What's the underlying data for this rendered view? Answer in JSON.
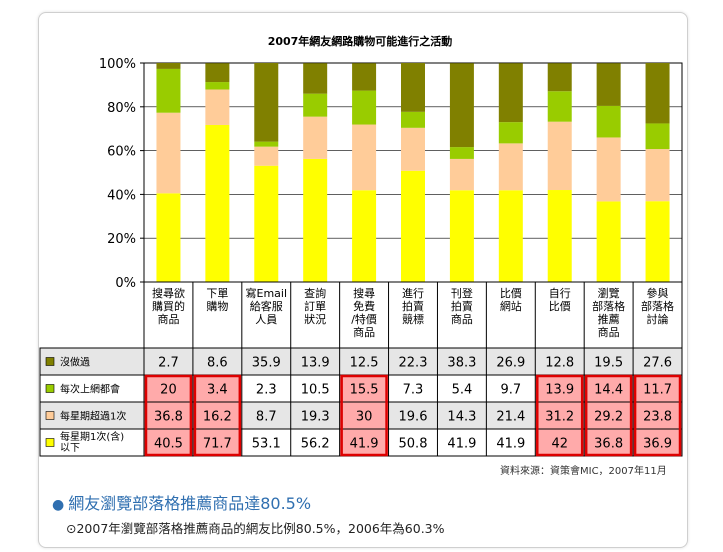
{
  "chart_data": {
    "type": "bar",
    "stacked": true,
    "title": "2007年網友網路購物可能進行之活動",
    "categories": [
      "搜尋欲購買的商品",
      "下單購物",
      "寫Email給客服人員",
      "查詢訂單狀況",
      "搜尋免費/特價商品",
      "進行拍賣競標",
      "刊登拍賣商品",
      "比價網站",
      "自行比價",
      "瀏覽部落格推薦商品",
      "參與部落格討論"
    ],
    "category_lines": [
      [
        "搜尋欲",
        "購買的",
        "商品"
      ],
      [
        "下單",
        "購物"
      ],
      [
        "寫Email",
        "給客服",
        "人員"
      ],
      [
        "查詢",
        "訂單",
        "狀況"
      ],
      [
        "搜尋",
        "免費",
        "/特價",
        "商品"
      ],
      [
        "進行",
        "拍賣",
        "競標"
      ],
      [
        "刊登",
        "拍賣",
        "商品"
      ],
      [
        "比價",
        "網站"
      ],
      [
        "自行",
        "比價"
      ],
      [
        "瀏覽",
        "部落格",
        "推薦",
        "商品"
      ],
      [
        "參與",
        "部落格",
        "討論"
      ]
    ],
    "ylim": [
      0,
      100
    ],
    "yticks": [
      "0%",
      "20%",
      "40%",
      "60%",
      "80%",
      "100%"
    ],
    "grid": true,
    "legend_position": "table-left",
    "series": [
      {
        "name": "每星期1次(含)以下",
        "label_lines": [
          "每星期1次(含)",
          "以下"
        ],
        "color": "#ffff00",
        "values": [
          40.5,
          71.7,
          53.1,
          56.2,
          41.9,
          50.8,
          41.9,
          41.9,
          42,
          36.8,
          36.9
        ]
      },
      {
        "name": "每星期超過1次",
        "label_lines": [
          "每星期超過1次"
        ],
        "color": "#ffcc99",
        "values": [
          36.8,
          16.2,
          8.7,
          19.3,
          30,
          19.6,
          14.3,
          21.4,
          31.2,
          29.2,
          23.8
        ]
      },
      {
        "name": "每次上網都會",
        "label_lines": [
          "每次上網都會"
        ],
        "color": "#99cc00",
        "values": [
          20,
          3.4,
          2.3,
          10.5,
          15.5,
          7.3,
          5.4,
          9.7,
          13.9,
          14.4,
          11.7
        ]
      },
      {
        "name": "沒做過",
        "label_lines": [
          "沒做過"
        ],
        "color": "#808000",
        "values": [
          2.7,
          8.6,
          35.9,
          13.9,
          12.5,
          22.3,
          38.3,
          26.9,
          12.8,
          19.5,
          27.6
        ]
      }
    ],
    "table_row_order": [
      "沒做過",
      "每次上網都會",
      "每星期超過1次",
      "每星期1次(含)以下"
    ],
    "highlight_cells": [
      {
        "series": "每次上網都會",
        "cols": [
          0,
          1,
          4,
          8,
          9,
          10
        ]
      },
      {
        "series": "每星期超過1次",
        "cols": [
          0,
          1,
          4,
          8,
          9,
          10
        ]
      },
      {
        "series": "每星期1次(含)以下",
        "cols": [
          0,
          1,
          4,
          8,
          9,
          10
        ]
      }
    ],
    "highlight_color": "#ffaaaa",
    "highlight_border": "#dd0000"
  },
  "source_note": "資料來源：資策會MIC，2007年11月",
  "headline": "網友瀏覽部落格推薦商品達80.5%",
  "subline": "⊙2007年瀏覽部落格推薦商品的網友比例80.5%，2006年為60.3%"
}
